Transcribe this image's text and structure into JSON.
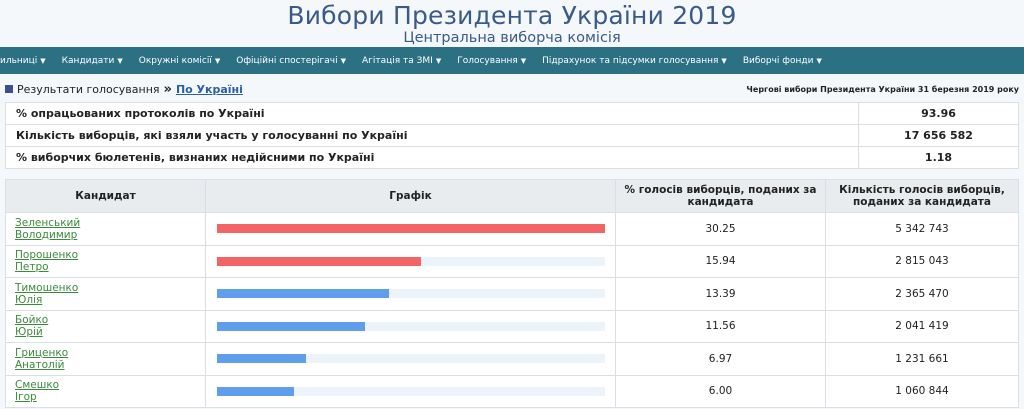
{
  "header": {
    "title": "Вибори Президента України 2019",
    "subtitle": "Центральна виборча комісія"
  },
  "nav": {
    "items": [
      {
        "label": "ильниці"
      },
      {
        "label": "Кандидати"
      },
      {
        "label": "Окружні комісії"
      },
      {
        "label": "Офіційні спостерігачі"
      },
      {
        "label": "Агітація та ЗМІ"
      },
      {
        "label": "Голосування"
      },
      {
        "label": "Підрахунок та підсумки голосування"
      },
      {
        "label": "Виборчі фонди"
      }
    ]
  },
  "breadcrumb": {
    "section": "Результати голосування",
    "separator": "»",
    "current": "По Україні",
    "election_label": "Чергові вибори Президента України 31 березня 2019 року"
  },
  "summary": [
    {
      "label": "% опрацьованих протоколів по Україні",
      "value": "93.96"
    },
    {
      "label": "Кількість виборців, які взяли участь у голосуванні по Україні",
      "value": "17 656 582"
    },
    {
      "label": "% виборчих бюлетенів, визнаних недійсними по Україні",
      "value": "1.18"
    }
  ],
  "results": {
    "headers": {
      "candidate": "Кандидат",
      "chart": "Графік",
      "percent": "% голосів виборців, поданих за кандидата",
      "votes": "Кількість голосів виборців, поданих за кандидата"
    },
    "colors": {
      "top": "#f36464",
      "other": "#5e9eec"
    },
    "rows": [
      {
        "last": "Зеленський",
        "first": "Володимир",
        "percent": "30.25",
        "votes": "5 342 743",
        "fill": 1.0,
        "highlight": true
      },
      {
        "last": "Порошенко",
        "first": "Петро",
        "percent": "15.94",
        "votes": "2 815 043",
        "fill": 0.527,
        "highlight": true
      },
      {
        "last": "Тимошенко",
        "first": "Юлія",
        "percent": "13.39",
        "votes": "2 365 470",
        "fill": 0.443,
        "highlight": false
      },
      {
        "last": "Бойко",
        "first": "Юрій",
        "percent": "11.56",
        "votes": "2 041 419",
        "fill": 0.382,
        "highlight": false
      },
      {
        "last": "Гриценко",
        "first": "Анатолій",
        "percent": "6.97",
        "votes": "1 231 661",
        "fill": 0.23,
        "highlight": false
      },
      {
        "last": "Смешко",
        "first": "Ігор",
        "percent": "6.00",
        "votes": "1 060 844",
        "fill": 0.198,
        "highlight": false
      }
    ]
  }
}
